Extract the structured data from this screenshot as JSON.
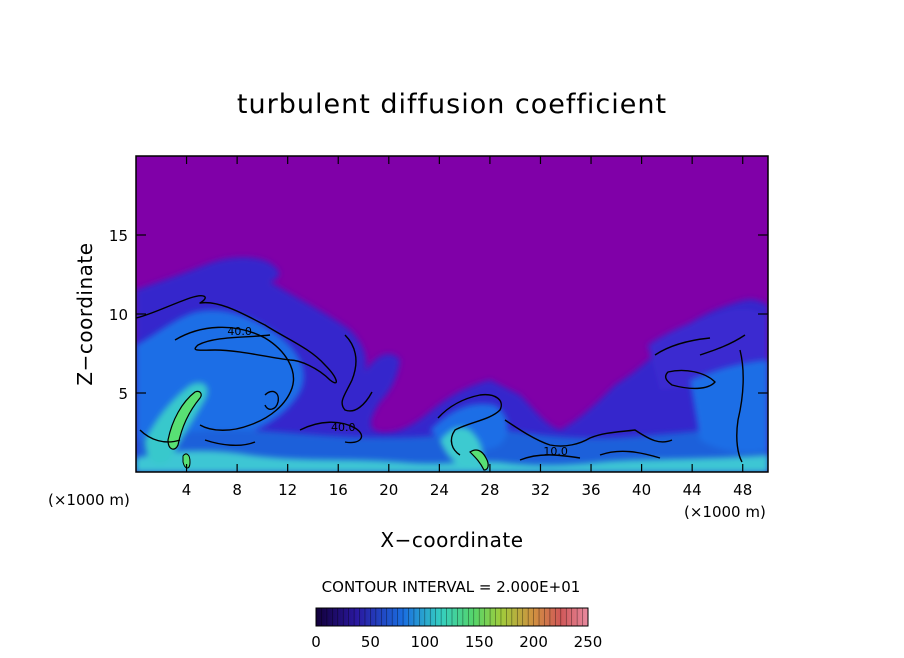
{
  "chart_data": {
    "type": "heatmap",
    "title": "turbulent diffusion coefficient",
    "xlabel": "X−coordinate",
    "ylabel": "Z−coordinate",
    "x_unit_left": "(×1000 m)",
    "x_unit_right": "(×1000 m)",
    "xlim": [
      0,
      50
    ],
    "ylim": [
      0,
      20
    ],
    "x_ticks": [
      4,
      8,
      12,
      16,
      20,
      24,
      28,
      32,
      36,
      40,
      44,
      48
    ],
    "y_ticks": [
      5,
      10,
      15
    ],
    "contour_interval_text": "CONTOUR INTERVAL = 2.000E+01",
    "contour_labels": [
      {
        "text": "40.0",
        "x": 8.2,
        "z": 9.0
      },
      {
        "text": "40.0",
        "x": 16.4,
        "z": 2.9
      },
      {
        "text": "10.0",
        "x": 33.2,
        "z": 1.4
      }
    ],
    "colorbar": {
      "min": 0,
      "max": 250,
      "tick_labels": [
        "0",
        "50",
        "100",
        "150",
        "200",
        "250"
      ],
      "colors": [
        "#16004a",
        "#2a1ea8",
        "#1c6fe0",
        "#35d1c8",
        "#55d46a",
        "#9fcf3a",
        "#d0a040",
        "#d06060",
        "#e08090"
      ]
    },
    "colors": {
      "background": "#8000a8",
      "field_low": "#3020d0",
      "field_mid": "#1f6fe6",
      "field_high": "#40d0d0",
      "field_peak": "#50e070"
    }
  }
}
